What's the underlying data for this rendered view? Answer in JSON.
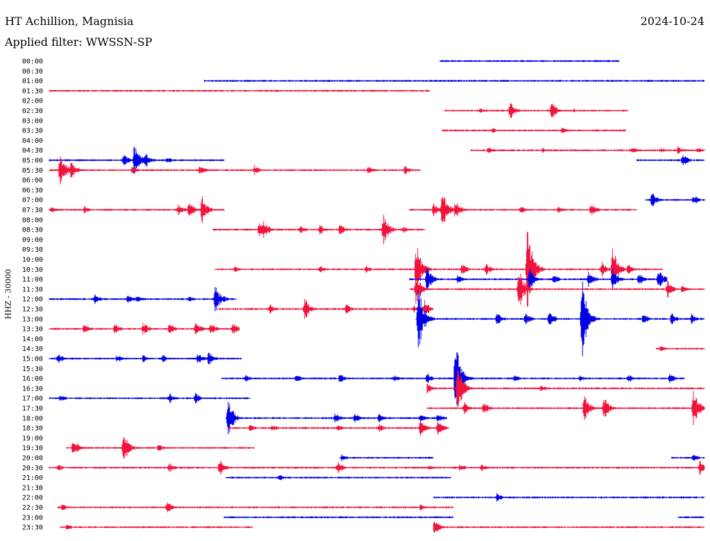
{
  "header": {
    "station": "HT Achillion, Magnisia",
    "date": "2024-10-24",
    "filter": "Applied filter: WWSSN-SP",
    "channel": "HHZ - 30000"
  },
  "colors": {
    "odd": "#0000e6",
    "even": "#f0143c"
  },
  "chart_data": {
    "type": "line",
    "title": "HT Achillion, Magnisia",
    "ylabel": "HHZ - 30000",
    "xlim": [
      0,
      30
    ],
    "x_unit": "minutes past row start",
    "rows": [
      {
        "label": "00:00",
        "segments": [
          [
            17.9,
            26.1
          ]
        ],
        "events": []
      },
      {
        "label": "00:30",
        "segments": [],
        "events": []
      },
      {
        "label": "01:00",
        "segments": [
          [
            7.1,
            30
          ]
        ],
        "events": []
      },
      {
        "label": "01:30",
        "segments": [
          [
            0,
            17.4
          ]
        ],
        "events": []
      },
      {
        "label": "02:00",
        "segments": [],
        "events": []
      },
      {
        "label": "02:30",
        "segments": [
          [
            18.1,
            26.5
          ]
        ],
        "events": [
          [
            19.7,
            4
          ],
          [
            21.1,
            14
          ],
          [
            23.0,
            13
          ],
          [
            24.0,
            3
          ]
        ]
      },
      {
        "label": "03:00",
        "segments": [],
        "events": []
      },
      {
        "label": "03:30",
        "segments": [
          [
            18.0,
            26.4
          ]
        ],
        "events": [
          [
            20.3,
            4
          ],
          [
            23.5,
            5
          ],
          [
            25.0,
            3
          ]
        ]
      },
      {
        "label": "04:00",
        "segments": [],
        "events": []
      },
      {
        "label": "04:30",
        "segments": [
          [
            19.3,
            30
          ]
        ],
        "events": [
          [
            20.1,
            6
          ],
          [
            22.6,
            4
          ],
          [
            26.7,
            5
          ],
          [
            28.0,
            4
          ],
          [
            28.8,
            6
          ],
          [
            29.7,
            5
          ]
        ]
      },
      {
        "label": "05:00",
        "segments": [
          [
            0,
            8.0
          ],
          [
            26.9,
            30
          ]
        ],
        "events": [
          [
            3.4,
            10
          ],
          [
            3.9,
            26
          ],
          [
            4.4,
            12
          ],
          [
            5.4,
            5
          ],
          [
            29.0,
            10
          ]
        ]
      },
      {
        "label": "05:30",
        "segments": [
          [
            0,
            17.0
          ]
        ],
        "events": [
          [
            0.5,
            25
          ],
          [
            1.0,
            14
          ],
          [
            3.8,
            7
          ],
          [
            6.9,
            8
          ],
          [
            9.4,
            8
          ],
          [
            14.6,
            6
          ],
          [
            16.3,
            7
          ]
        ]
      },
      {
        "label": "06:00",
        "segments": [],
        "events": []
      },
      {
        "label": "06:30",
        "segments": [],
        "events": []
      },
      {
        "label": "07:00",
        "segments": [
          [
            27.3,
            30
          ]
        ],
        "events": [
          [
            27.6,
            12
          ],
          [
            29.5,
            8
          ]
        ]
      },
      {
        "label": "07:30",
        "segments": [
          [
            0,
            8.0
          ],
          [
            16.5,
            26.9
          ]
        ],
        "events": [
          [
            0.1,
            6
          ],
          [
            1.6,
            6
          ],
          [
            5.9,
            9
          ],
          [
            6.4,
            14
          ],
          [
            7.0,
            21
          ],
          [
            17.6,
            10
          ],
          [
            18.0,
            30
          ],
          [
            18.6,
            16
          ],
          [
            21.6,
            6
          ],
          [
            23.3,
            6
          ],
          [
            24.8,
            10
          ]
        ]
      },
      {
        "label": "08:00",
        "segments": [],
        "events": []
      },
      {
        "label": "08:30",
        "segments": [
          [
            7.5,
            17.2
          ]
        ],
        "events": [
          [
            9.6,
            12
          ],
          [
            9.8,
            16
          ],
          [
            11.5,
            7
          ],
          [
            12.4,
            8
          ],
          [
            13.3,
            9
          ],
          [
            15.3,
            25
          ],
          [
            16.2,
            6
          ]
        ]
      },
      {
        "label": "09:00",
        "segments": [],
        "events": []
      },
      {
        "label": "09:30",
        "segments": [],
        "events": []
      },
      {
        "label": "10:00",
        "segments": [],
        "events": []
      },
      {
        "label": "10:30",
        "segments": [
          [
            7.6,
            28.1
          ]
        ],
        "events": [
          [
            8.5,
            5
          ],
          [
            12.4,
            6
          ],
          [
            14.5,
            6
          ],
          [
            16.8,
            42
          ],
          [
            18.9,
            10
          ],
          [
            20.0,
            10
          ],
          [
            21.9,
            68
          ],
          [
            25.3,
            12
          ],
          [
            25.8,
            34
          ],
          [
            26.5,
            8
          ]
        ]
      },
      {
        "label": "11:00",
        "segments": [
          [
            16.5,
            28.3
          ]
        ],
        "events": [
          [
            17.3,
            20
          ],
          [
            18.7,
            8
          ],
          [
            22.0,
            18
          ],
          [
            23.1,
            8
          ],
          [
            24.7,
            14
          ],
          [
            25.8,
            16
          ],
          [
            27.0,
            10
          ],
          [
            27.9,
            16
          ]
        ]
      },
      {
        "label": "11:30",
        "segments": [
          [
            16.5,
            30
          ]
        ],
        "events": [
          [
            16.8,
            26
          ],
          [
            21.5,
            32
          ],
          [
            28.3,
            14
          ],
          [
            29.0,
            8
          ]
        ]
      },
      {
        "label": "12:00",
        "segments": [
          [
            0,
            8.6
          ]
        ],
        "events": [
          [
            2.1,
            8
          ],
          [
            3.6,
            7
          ],
          [
            4.0,
            6
          ],
          [
            6.4,
            5
          ],
          [
            7.6,
            22
          ],
          [
            8.0,
            5
          ]
        ]
      },
      {
        "label": "12:30",
        "segments": [
          [
            7.7,
            17.6
          ]
        ],
        "events": [
          [
            10.1,
            8
          ],
          [
            11.7,
            18
          ],
          [
            13.6,
            8
          ],
          [
            16.7,
            6
          ],
          [
            17.2,
            14
          ]
        ]
      },
      {
        "label": "13:00",
        "segments": [
          [
            16.8,
            30
          ]
        ],
        "events": [
          [
            16.9,
            55
          ],
          [
            20.5,
            10
          ],
          [
            21.8,
            10
          ],
          [
            22.9,
            12
          ],
          [
            24.4,
            62
          ],
          [
            27.2,
            10
          ],
          [
            28.5,
            10
          ],
          [
            29.4,
            8
          ]
        ]
      },
      {
        "label": "13:30",
        "segments": [
          [
            0,
            8.7
          ]
        ],
        "events": [
          [
            1.6,
            10
          ],
          [
            3.0,
            10
          ],
          [
            4.3,
            11
          ],
          [
            5.5,
            10
          ],
          [
            6.7,
            12
          ],
          [
            7.4,
            9
          ],
          [
            8.4,
            10
          ]
        ]
      },
      {
        "label": "14:00",
        "segments": [],
        "events": []
      },
      {
        "label": "14:30",
        "segments": [
          [
            27.8,
            30
          ]
        ],
        "events": [
          [
            28.0,
            6
          ]
        ]
      },
      {
        "label": "15:00",
        "segments": [
          [
            0,
            8.8
          ]
        ],
        "events": [
          [
            0.4,
            8
          ],
          [
            3.1,
            7
          ],
          [
            4.3,
            6
          ],
          [
            5.2,
            6
          ],
          [
            6.8,
            9
          ],
          [
            7.3,
            11
          ]
        ]
      },
      {
        "label": "15:30",
        "segments": [],
        "events": []
      },
      {
        "label": "16:00",
        "segments": [
          [
            7.9,
            29.1
          ]
        ],
        "events": [
          [
            9.0,
            6
          ],
          [
            11.3,
            6
          ],
          [
            13.3,
            8
          ],
          [
            15.8,
            6
          ],
          [
            17.3,
            8
          ],
          [
            18.6,
            62
          ],
          [
            21.3,
            6
          ],
          [
            24.3,
            6
          ],
          [
            26.5,
            7
          ],
          [
            28.4,
            8
          ]
        ]
      },
      {
        "label": "16:30",
        "segments": [
          [
            17.3,
            30
          ]
        ],
        "events": [
          [
            17.3,
            8
          ],
          [
            18.7,
            38
          ],
          [
            22.5,
            6
          ]
        ]
      },
      {
        "label": "17:00",
        "segments": [
          [
            0,
            9.2
          ]
        ],
        "events": [
          [
            0.5,
            6
          ],
          [
            5.5,
            8
          ],
          [
            6.7,
            8
          ]
        ]
      },
      {
        "label": "17:30",
        "segments": [
          [
            17.3,
            30
          ]
        ],
        "events": [
          [
            19.0,
            10
          ],
          [
            19.9,
            10
          ],
          [
            24.5,
            20
          ],
          [
            25.4,
            18
          ],
          [
            29.5,
            30
          ]
        ]
      },
      {
        "label": "18:00",
        "segments": [
          [
            8.1,
            18.2
          ]
        ],
        "events": [
          [
            8.2,
            30
          ],
          [
            13.1,
            8
          ],
          [
            14.0,
            8
          ],
          [
            15.1,
            8
          ],
          [
            17.0,
            8
          ],
          [
            17.8,
            8
          ]
        ]
      },
      {
        "label": "18:30",
        "segments": [
          [
            8.2,
            18.3
          ]
        ],
        "events": [
          [
            9.2,
            6
          ],
          [
            10.2,
            6
          ],
          [
            13.2,
            6
          ],
          [
            15.1,
            7
          ],
          [
            17.0,
            14
          ],
          [
            17.8,
            12
          ]
        ]
      },
      {
        "label": "19:00",
        "segments": [],
        "events": []
      },
      {
        "label": "19:30",
        "segments": [
          [
            0.8,
            9.4
          ]
        ],
        "events": [
          [
            1.1,
            14
          ],
          [
            3.4,
            24
          ],
          [
            5.0,
            6
          ]
        ]
      },
      {
        "label": "20:00",
        "segments": [
          [
            13.3,
            17.6
          ],
          [
            28.5,
            30
          ]
        ],
        "events": [
          [
            13.4,
            6
          ],
          [
            29.5,
            6
          ]
        ]
      },
      {
        "label": "20:30",
        "segments": [
          [
            0,
            30
          ]
        ],
        "events": [
          [
            0.4,
            6
          ],
          [
            5.5,
            8
          ],
          [
            7.8,
            12
          ],
          [
            13.2,
            10
          ],
          [
            17.4,
            5
          ],
          [
            18.8,
            6
          ],
          [
            19.8,
            6
          ],
          [
            29.8,
            14
          ]
        ]
      },
      {
        "label": "21:00",
        "segments": [
          [
            8.1,
            18.4
          ]
        ],
        "events": [
          [
            10.5,
            6
          ]
        ]
      },
      {
        "label": "21:30",
        "segments": [],
        "events": []
      },
      {
        "label": "22:00",
        "segments": [
          [
            17.6,
            30
          ]
        ],
        "events": [
          [
            20.5,
            7
          ]
        ]
      },
      {
        "label": "22:30",
        "segments": [
          [
            0.4,
            18.5
          ]
        ],
        "events": [
          [
            0.6,
            6
          ],
          [
            5.4,
            9
          ],
          [
            17.0,
            5
          ]
        ]
      },
      {
        "label": "23:00",
        "segments": [
          [
            8.0,
            18.5
          ],
          [
            28.8,
            30
          ]
        ],
        "events": []
      },
      {
        "label": "23:30",
        "segments": [
          [
            0.5,
            9.3
          ],
          [
            17.6,
            30
          ]
        ],
        "events": [
          [
            0.8,
            5
          ],
          [
            17.6,
            14
          ]
        ]
      }
    ]
  }
}
